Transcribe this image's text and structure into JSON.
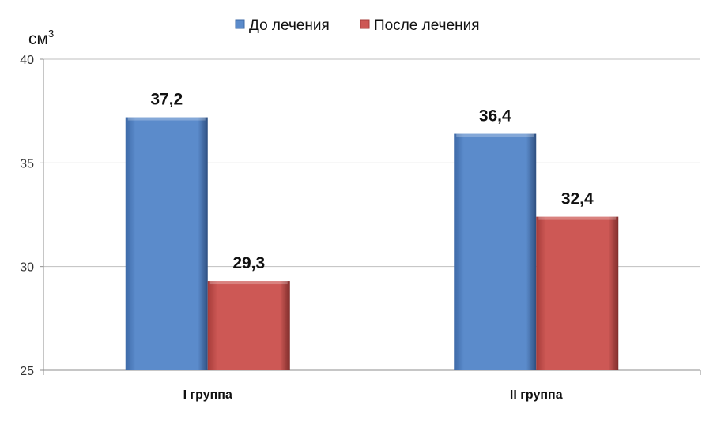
{
  "chart_data": {
    "type": "bar",
    "ylabel": "см",
    "ylabel_superscript": "3",
    "ylim": [
      25,
      40
    ],
    "yticks": [
      25,
      30,
      35,
      40
    ],
    "categories": [
      "I группа",
      "II группа"
    ],
    "series": [
      {
        "name": "До лечения",
        "color": "#5B8BCB",
        "values": [
          37.2,
          36.4
        ],
        "labels": [
          "37,2",
          "36,4"
        ]
      },
      {
        "name": "После лечения",
        "color": "#CD5855",
        "values": [
          29.3,
          32.4
        ],
        "labels": [
          "29,3",
          "32,4"
        ]
      }
    ],
    "grid": true,
    "legend": "top"
  }
}
